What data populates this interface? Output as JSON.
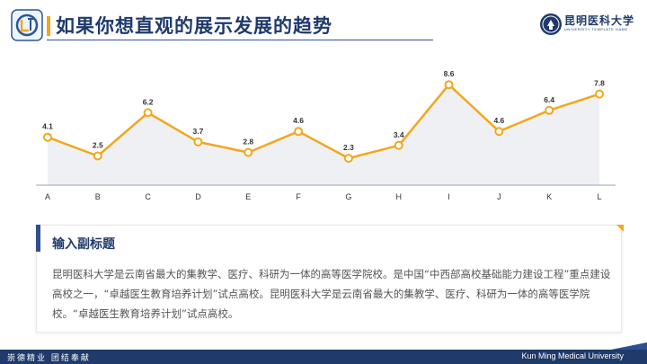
{
  "header": {
    "title": "如果你想直观的展示发展的趋势",
    "logo_text": "LOGO",
    "university_name": "昆明医科大学",
    "university_sub": "UNIVERSITY TEMPLATE GAME"
  },
  "chart_data": {
    "type": "area",
    "categories": [
      "A",
      "B",
      "C",
      "D",
      "E",
      "F",
      "G",
      "H",
      "I",
      "J",
      "K",
      "L"
    ],
    "values": [
      4.1,
      2.5,
      6.2,
      3.7,
      2.8,
      4.6,
      2.3,
      3.4,
      8.6,
      4.6,
      6.4,
      7.8
    ],
    "title": "",
    "xlabel": "",
    "ylabel": "",
    "ylim": [
      0,
      10
    ],
    "grid": false,
    "data_labels": true,
    "line_color": "#f0a81c",
    "area_color": "#eef0f4"
  },
  "panel": {
    "subheading": "输入副标题",
    "body": "昆明医科大学是云南省最大的集教学、医疗、科研为一体的高等医学院校。是中国“中西部高校基础能力建设工程”重点建设高校之一，“卓越医生教育培养计划”试点高校。昆明医科大学是云南省最大的集教学、医疗、科研为一体的高等医学院校。“卓越医生教育培养计划”试点高校。"
  },
  "footer": {
    "left": "崇德精业 团结奉献",
    "right": "Kun Ming Medical University"
  },
  "colors": {
    "primary": "#1f3a6b",
    "accent": "#f0a81c"
  }
}
